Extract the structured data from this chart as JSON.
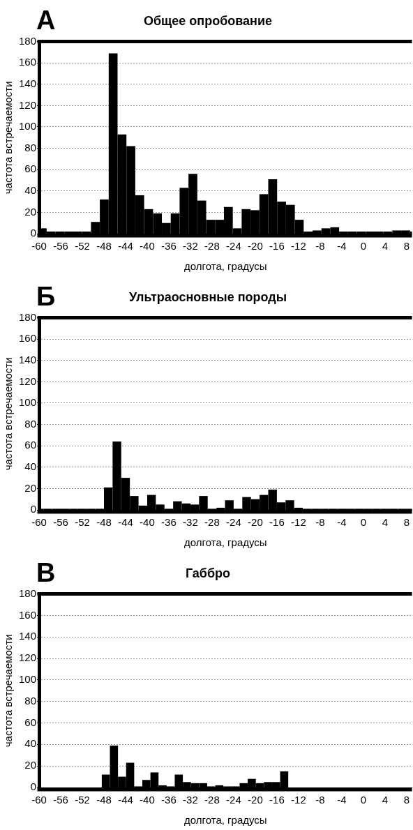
{
  "chart_data": [
    {
      "type": "histogram",
      "title": "Общее опробование",
      "xlabel": "долгота, градусы",
      "ylabel": "частота встречаемости",
      "annotations": [
        "А"
      ],
      "bins": [
        -60,
        -58.6,
        -56.96,
        -55.32,
        -53.68,
        -52.04,
        -50.4,
        -48.76,
        -47.12,
        -45.48,
        -43.84,
        -42.2,
        -40.56,
        -38.92,
        -37.28,
        -35.64,
        -34,
        -32.36,
        -30.72,
        -29.08,
        -27.44,
        -25.8,
        -24.16,
        -22.52,
        -20.88,
        -19.24,
        -17.6,
        -15.96,
        -14.32,
        -12.68,
        -11.04,
        -9.4,
        -7.76,
        -6.12,
        -4.48,
        -2.84,
        -1.2,
        0.44,
        2.08,
        3.72,
        5.36,
        7,
        8.64,
        9
      ],
      "values": [
        5,
        2,
        2,
        2,
        2,
        2,
        11,
        32,
        169,
        93,
        82,
        36,
        23,
        19,
        10,
        19,
        43,
        56,
        31,
        13,
        13,
        25,
        5,
        23,
        22,
        37,
        51,
        30,
        27,
        13,
        2,
        3,
        5,
        6,
        2,
        2,
        2,
        2,
        2,
        2,
        3,
        3,
        2
      ],
      "color": "#000000",
      "xlim": [
        -60,
        9
      ],
      "xticks": [
        -60,
        -56,
        -52,
        -48,
        -44,
        -40,
        -36,
        -32,
        -28,
        -24,
        -20,
        -16,
        -12,
        -8,
        -4,
        0,
        4,
        8
      ],
      "ylim": [
        0,
        180
      ],
      "yticks": [
        0,
        20,
        40,
        60,
        80,
        100,
        120,
        140,
        160,
        180
      ],
      "grid": "y",
      "legend": false
    },
    {
      "type": "histogram",
      "title": "Ультраосновные породы",
      "xlabel": "долгота, градусы",
      "ylabel": "частота встречаемости",
      "annotations": [
        "Б"
      ],
      "bins": [
        -60,
        -59.2,
        -57.6,
        -56,
        -54.4,
        -52.8,
        -51.2,
        -49.6,
        -48,
        -46.4,
        -44.8,
        -43.2,
        -41.6,
        -40,
        -38.4,
        -36.8,
        -35.2,
        -33.6,
        -32,
        -30.4,
        -28.8,
        -27.2,
        -25.6,
        -24,
        -22.4,
        -20.8,
        -19.2,
        -17.6,
        -16,
        -14.4,
        -12.8,
        -11.2,
        -9.6,
        -8,
        -6.4,
        -4.8,
        -3.2,
        -1.6,
        0,
        1.6,
        3.2,
        4.8,
        6.4,
        8,
        9
      ],
      "values": [
        1,
        1,
        1,
        1,
        1,
        1,
        1,
        1,
        21,
        64,
        30,
        13,
        4,
        14,
        5,
        1,
        8,
        6,
        5,
        13,
        1,
        2,
        9,
        1,
        12,
        10,
        14,
        19,
        7,
        9,
        2,
        1,
        1,
        1,
        1,
        1,
        1,
        1,
        1,
        1,
        1,
        1,
        1,
        1
      ],
      "color": "#000000",
      "xlim": [
        -60,
        9
      ],
      "xticks": [
        -60,
        -56,
        -52,
        -48,
        -44,
        -40,
        -36,
        -32,
        -28,
        -24,
        -20,
        -16,
        -12,
        -8,
        -4,
        0,
        4,
        8
      ],
      "ylim": [
        0,
        180
      ],
      "yticks": [
        0,
        20,
        40,
        60,
        80,
        100,
        120,
        140,
        160,
        180
      ],
      "grid": "y",
      "legend": false
    },
    {
      "type": "histogram",
      "title": "Габбро",
      "xlabel": "долгота, градусы",
      "ylabel": "частота встречаемости",
      "annotations": [
        "В"
      ],
      "bins": [
        -48.4,
        -46.9,
        -45.4,
        -43.9,
        -42.4,
        -40.9,
        -39.4,
        -37.9,
        -36.4,
        -34.9,
        -33.4,
        -31.9,
        -30.4,
        -28.9,
        -27.4,
        -25.9,
        -24.4,
        -22.9,
        -21.4,
        -19.9,
        -18.4,
        -16.9,
        -15.4,
        -13.9
      ],
      "values": [
        12,
        39,
        10,
        23,
        1,
        7,
        14,
        2,
        1,
        12,
        5,
        4,
        4,
        1,
        2,
        1,
        1,
        4,
        8,
        4,
        5,
        5,
        15
      ],
      "color": "#000000",
      "xlim": [
        -60,
        9
      ],
      "xticks": [
        -60,
        -56,
        -52,
        -48,
        -44,
        -40,
        -36,
        -32,
        -28,
        -24,
        -20,
        -16,
        -12,
        -8,
        -4,
        0,
        4,
        8
      ],
      "ylim": [
        0,
        180
      ],
      "yticks": [
        0,
        20,
        40,
        60,
        80,
        100,
        120,
        140,
        160,
        180
      ],
      "grid": "y",
      "legend": false
    }
  ]
}
